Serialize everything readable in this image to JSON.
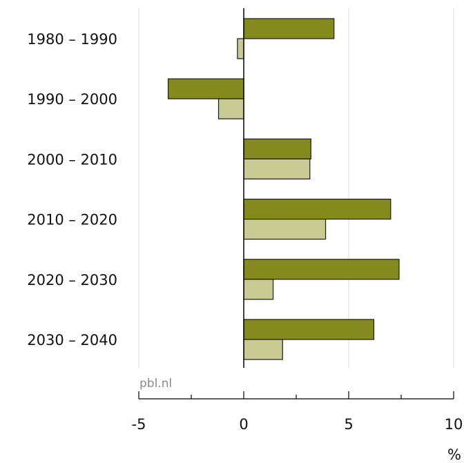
{
  "source": "pbl.nl",
  "chart_data": {
    "type": "bar",
    "orientation": "horizontal",
    "categories": [
      "1980 – 1990",
      "1990 – 2000",
      "2000 – 2010",
      "2010 – 2020",
      "2020 – 2030",
      "2030 – 2040"
    ],
    "series": [
      {
        "values": [
          4.3,
          -3.6,
          3.2,
          7.0,
          7.4,
          6.2
        ],
        "color": "#858a1f"
      },
      {
        "values": [
          -0.3,
          -1.2,
          3.15,
          3.9,
          1.4,
          1.85
        ],
        "color": "#c9c993"
      }
    ],
    "x_ticks": [
      "-5",
      "0",
      "5",
      "10"
    ],
    "x_unit": "%",
    "xlim": [
      -5,
      10
    ],
    "grid": true,
    "legend": "none"
  }
}
